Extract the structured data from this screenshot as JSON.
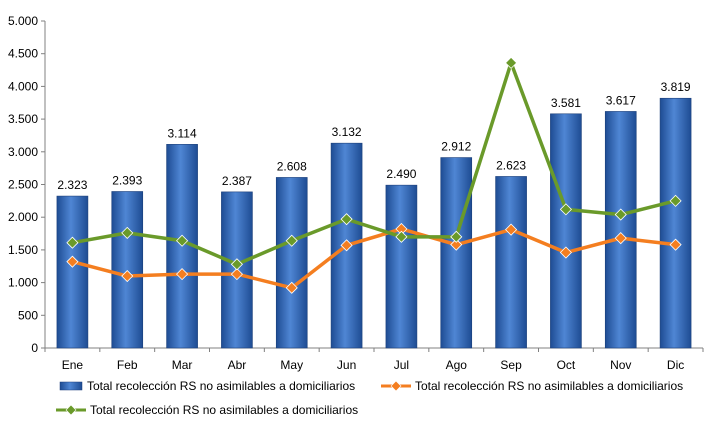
{
  "chart_data": {
    "type": "bar",
    "categories": [
      "Ene",
      "Feb",
      "Mar",
      "Abr",
      "May",
      "Jun",
      "Jul",
      "Ago",
      "Sep",
      "Oct",
      "Nov",
      "Dic"
    ],
    "ylim": [
      0,
      5000
    ],
    "yticks": [
      0,
      500,
      1000,
      1500,
      2000,
      2500,
      3000,
      3500,
      4000,
      4500,
      5000
    ],
    "ytick_labels": [
      "0",
      "500",
      "1.000",
      "1.500",
      "2.000",
      "2.500",
      "3.000",
      "3.500",
      "4.000",
      "4.500",
      "5.000"
    ],
    "grid": false,
    "legend_position": "bottom",
    "series": [
      {
        "name": "Total recolección RS no asimilables a domiciliarios",
        "type": "bar",
        "color": "#2E64B5",
        "values": [
          2323,
          2393,
          3114,
          2387,
          2608,
          3132,
          2490,
          2912,
          2623,
          3581,
          3617,
          3819
        ],
        "data_labels": [
          "2.323",
          "2.393",
          "3.114",
          "2.387",
          "2.608",
          "3.132",
          "2.490",
          "2.912",
          "2.623",
          "3.581",
          "3.617",
          "3.819"
        ]
      },
      {
        "name": "Total recolección RS no asimilables a domiciliarios",
        "type": "line",
        "color": "#F47E20",
        "values": [
          1320,
          1100,
          1130,
          1130,
          920,
          1570,
          1820,
          1580,
          1810,
          1460,
          1680,
          1580
        ]
      },
      {
        "name": "Total recolección RS no asimilables a domiciliarios",
        "type": "line",
        "color": "#6A9A2A",
        "values": [
          1610,
          1760,
          1640,
          1280,
          1640,
          1970,
          1700,
          1700,
          4360,
          2120,
          2040,
          2250
        ]
      }
    ]
  }
}
